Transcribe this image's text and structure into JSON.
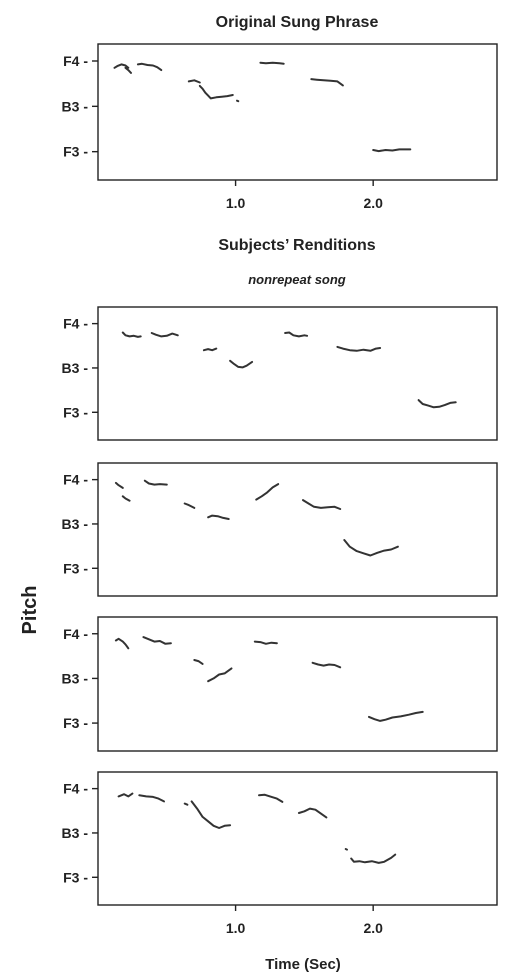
{
  "figure": {
    "title": "Original Sung Phrase",
    "middle_title": "Subjects’ Renditions",
    "middle_subtitle": "nonrepeat song",
    "y_label": "Pitch",
    "x_label": "Time (Sec)"
  },
  "chart_data": [
    {
      "type": "line",
      "title": "Original Sung Phrase",
      "ylabel": "Pitch",
      "xlabel": "",
      "xlim": [
        0,
        2.9
      ],
      "ylim": [
        2.5,
        14.5
      ],
      "y_ticks": [
        {
          "label": "F4",
          "value": 13
        },
        {
          "label": "B3",
          "value": 9
        },
        {
          "label": "F3",
          "value": 5
        }
      ],
      "x_ticks": [
        {
          "label": "1.0",
          "value": 1.0
        },
        {
          "label": "2.0",
          "value": 2.0
        }
      ],
      "series": [
        {
          "x": [
            0.12,
            0.14,
            0.17,
            0.2,
            0.22
          ],
          "y": [
            12.4,
            12.55,
            12.7,
            12.6,
            12.4
          ]
        },
        {
          "x": [
            0.2,
            0.22,
            0.24
          ],
          "y": [
            12.4,
            12.2,
            11.95
          ]
        },
        {
          "x": [
            0.29,
            0.32,
            0.36,
            0.4,
            0.43,
            0.46
          ],
          "y": [
            12.7,
            12.75,
            12.65,
            12.6,
            12.45,
            12.2
          ]
        },
        {
          "x": [
            0.66,
            0.7,
            0.74
          ],
          "y": [
            11.2,
            11.3,
            11.1
          ]
        },
        {
          "x": [
            0.74,
            0.76,
            0.78,
            0.8,
            0.82,
            0.86,
            0.9,
            0.94,
            0.98
          ],
          "y": [
            10.8,
            10.55,
            10.2,
            9.95,
            9.7,
            9.8,
            9.85,
            9.9,
            10.0
          ]
        },
        {
          "x": [
            1.01,
            1.02
          ],
          "y": [
            9.5,
            9.45
          ]
        },
        {
          "x": [
            1.18,
            1.22,
            1.27,
            1.32,
            1.35
          ],
          "y": [
            12.85,
            12.8,
            12.85,
            12.8,
            12.75
          ]
        },
        {
          "x": [
            1.55,
            1.59,
            1.64,
            1.69,
            1.74,
            1.78
          ],
          "y": [
            11.4,
            11.35,
            11.3,
            11.25,
            11.2,
            10.85
          ]
        },
        {
          "x": [
            2.0,
            2.04,
            2.09,
            2.14,
            2.19,
            2.24,
            2.27
          ],
          "y": [
            5.15,
            5.05,
            5.15,
            5.1,
            5.2,
            5.2,
            5.2
          ]
        }
      ]
    },
    {
      "type": "line",
      "title": "",
      "ylabel": "Pitch",
      "xlabel": "",
      "xlim": [
        0,
        2.9
      ],
      "ylim": [
        2.5,
        14.5
      ],
      "y_ticks": [
        {
          "label": "F4",
          "value": 13
        },
        {
          "label": "B3",
          "value": 9
        },
        {
          "label": "F3",
          "value": 5
        }
      ],
      "series": [
        {
          "x": [
            0.18,
            0.2,
            0.23,
            0.26,
            0.29,
            0.31
          ],
          "y": [
            12.2,
            11.95,
            11.85,
            11.9,
            11.8,
            11.85
          ]
        },
        {
          "x": [
            0.39,
            0.42,
            0.46,
            0.5,
            0.54,
            0.58
          ],
          "y": [
            12.15,
            12.0,
            11.85,
            11.9,
            12.1,
            11.95
          ]
        },
        {
          "x": [
            0.77,
            0.8,
            0.83,
            0.86
          ],
          "y": [
            10.6,
            10.7,
            10.6,
            10.75
          ]
        },
        {
          "x": [
            0.96,
            0.99,
            1.02,
            1.05,
            1.08,
            1.12
          ],
          "y": [
            9.65,
            9.35,
            9.1,
            9.05,
            9.2,
            9.55
          ]
        },
        {
          "x": [
            1.36,
            1.39,
            1.42,
            1.46,
            1.5,
            1.52
          ],
          "y": [
            12.15,
            12.2,
            11.95,
            11.85,
            11.95,
            11.9
          ]
        },
        {
          "x": [
            1.74,
            1.78,
            1.83,
            1.88,
            1.93,
            1.98,
            2.02,
            2.05
          ],
          "y": [
            10.9,
            10.75,
            10.6,
            10.55,
            10.65,
            10.55,
            10.75,
            10.8
          ]
        },
        {
          "x": [
            2.33,
            2.36,
            2.4,
            2.44,
            2.48,
            2.52,
            2.56,
            2.6
          ],
          "y": [
            6.1,
            5.75,
            5.6,
            5.45,
            5.5,
            5.65,
            5.85,
            5.9
          ]
        }
      ]
    },
    {
      "type": "line",
      "title": "",
      "ylabel": "Pitch",
      "xlabel": "",
      "xlim": [
        0,
        2.9
      ],
      "ylim": [
        2.5,
        14.5
      ],
      "y_ticks": [
        {
          "label": "F4",
          "value": 13
        },
        {
          "label": "B3",
          "value": 9
        },
        {
          "label": "F3",
          "value": 5
        }
      ],
      "series": [
        {
          "x": [
            0.13,
            0.15,
            0.18
          ],
          "y": [
            12.7,
            12.5,
            12.25
          ]
        },
        {
          "x": [
            0.18,
            0.2,
            0.23
          ],
          "y": [
            11.5,
            11.3,
            11.1
          ]
        },
        {
          "x": [
            0.34,
            0.37,
            0.41,
            0.45,
            0.5
          ],
          "y": [
            12.9,
            12.65,
            12.55,
            12.6,
            12.55
          ]
        },
        {
          "x": [
            0.63,
            0.66,
            0.7
          ],
          "y": [
            10.85,
            10.7,
            10.45
          ]
        },
        {
          "x": [
            0.8,
            0.83,
            0.87,
            0.91,
            0.95
          ],
          "y": [
            9.6,
            9.75,
            9.7,
            9.55,
            9.45
          ]
        },
        {
          "x": [
            1.15,
            1.19,
            1.23,
            1.27,
            1.31
          ],
          "y": [
            11.2,
            11.5,
            11.85,
            12.3,
            12.6
          ]
        },
        {
          "x": [
            1.49,
            1.53,
            1.57,
            1.62,
            1.67,
            1.72,
            1.76
          ],
          "y": [
            11.15,
            10.85,
            10.55,
            10.45,
            10.5,
            10.55,
            10.35
          ]
        },
        {
          "x": [
            1.79,
            1.83,
            1.88,
            1.93,
            1.98,
            2.03,
            2.08,
            2.13,
            2.18
          ],
          "y": [
            7.55,
            6.95,
            6.55,
            6.35,
            6.15,
            6.4,
            6.6,
            6.7,
            6.95
          ]
        }
      ]
    },
    {
      "type": "line",
      "title": "",
      "ylabel": "Pitch",
      "xlabel": "",
      "xlim": [
        0,
        2.9
      ],
      "ylim": [
        2.5,
        14.5
      ],
      "y_ticks": [
        {
          "label": "F4",
          "value": 13
        },
        {
          "label": "B3",
          "value": 9
        },
        {
          "label": "F3",
          "value": 5
        }
      ],
      "series": [
        {
          "x": [
            0.13,
            0.15,
            0.18,
            0.2,
            0.22
          ],
          "y": [
            12.4,
            12.55,
            12.3,
            12.05,
            11.7
          ]
        },
        {
          "x": [
            0.33,
            0.37,
            0.41,
            0.45,
            0.49,
            0.53
          ],
          "y": [
            12.7,
            12.5,
            12.3,
            12.35,
            12.1,
            12.15
          ]
        },
        {
          "x": [
            0.7,
            0.73,
            0.76
          ],
          "y": [
            10.65,
            10.55,
            10.3
          ]
        },
        {
          "x": [
            0.8,
            0.84,
            0.88,
            0.92,
            0.97
          ],
          "y": [
            8.75,
            9.0,
            9.35,
            9.45,
            9.9
          ]
        },
        {
          "x": [
            1.14,
            1.18,
            1.22,
            1.26,
            1.3
          ],
          "y": [
            12.3,
            12.25,
            12.1,
            12.2,
            12.15
          ]
        },
        {
          "x": [
            1.56,
            1.6,
            1.64,
            1.68,
            1.72,
            1.76
          ],
          "y": [
            10.4,
            10.25,
            10.15,
            10.25,
            10.2,
            10.0
          ]
        },
        {
          "x": [
            1.97,
            2.01,
            2.05,
            2.09,
            2.14,
            2.2,
            2.26,
            2.31,
            2.36
          ],
          "y": [
            5.55,
            5.35,
            5.2,
            5.3,
            5.5,
            5.6,
            5.75,
            5.9,
            6.0
          ]
        }
      ]
    },
    {
      "type": "line",
      "title": "",
      "ylabel": "Pitch",
      "xlabel": "Time (Sec)",
      "xlim": [
        0,
        2.9
      ],
      "ylim": [
        2.5,
        14.5
      ],
      "y_ticks": [
        {
          "label": "F4",
          "value": 13
        },
        {
          "label": "B3",
          "value": 9
        },
        {
          "label": "F3",
          "value": 5
        }
      ],
      "x_ticks": [
        {
          "label": "1.0",
          "value": 1.0
        },
        {
          "label": "2.0",
          "value": 2.0
        }
      ],
      "series": [
        {
          "x": [
            0.15,
            0.19,
            0.22,
            0.25
          ],
          "y": [
            12.3,
            12.5,
            12.3,
            12.55
          ]
        },
        {
          "x": [
            0.3,
            0.35,
            0.4,
            0.44,
            0.48
          ],
          "y": [
            12.4,
            12.3,
            12.25,
            12.1,
            11.85
          ]
        },
        {
          "x": [
            0.63,
            0.65
          ],
          "y": [
            11.65,
            11.55
          ]
        },
        {
          "x": [
            0.68,
            0.72,
            0.76,
            0.8,
            0.84,
            0.88,
            0.92,
            0.96
          ],
          "y": [
            11.85,
            11.2,
            10.45,
            10.05,
            9.65,
            9.45,
            9.65,
            9.7
          ]
        },
        {
          "x": [
            1.17,
            1.21,
            1.25,
            1.3,
            1.34
          ],
          "y": [
            12.4,
            12.45,
            12.3,
            12.1,
            11.8
          ]
        },
        {
          "x": [
            1.46,
            1.5,
            1.54,
            1.58,
            1.62,
            1.66
          ],
          "y": [
            10.8,
            10.95,
            11.2,
            11.1,
            10.75,
            10.4
          ]
        },
        {
          "x": [
            1.8,
            1.81
          ],
          "y": [
            7.55,
            7.5
          ]
        },
        {
          "x": [
            1.84,
            1.86,
            1.9,
            1.94,
            1.99,
            2.04,
            2.08,
            2.13,
            2.16
          ],
          "y": [
            6.7,
            6.4,
            6.45,
            6.35,
            6.45,
            6.3,
            6.4,
            6.75,
            7.05
          ]
        }
      ]
    }
  ]
}
